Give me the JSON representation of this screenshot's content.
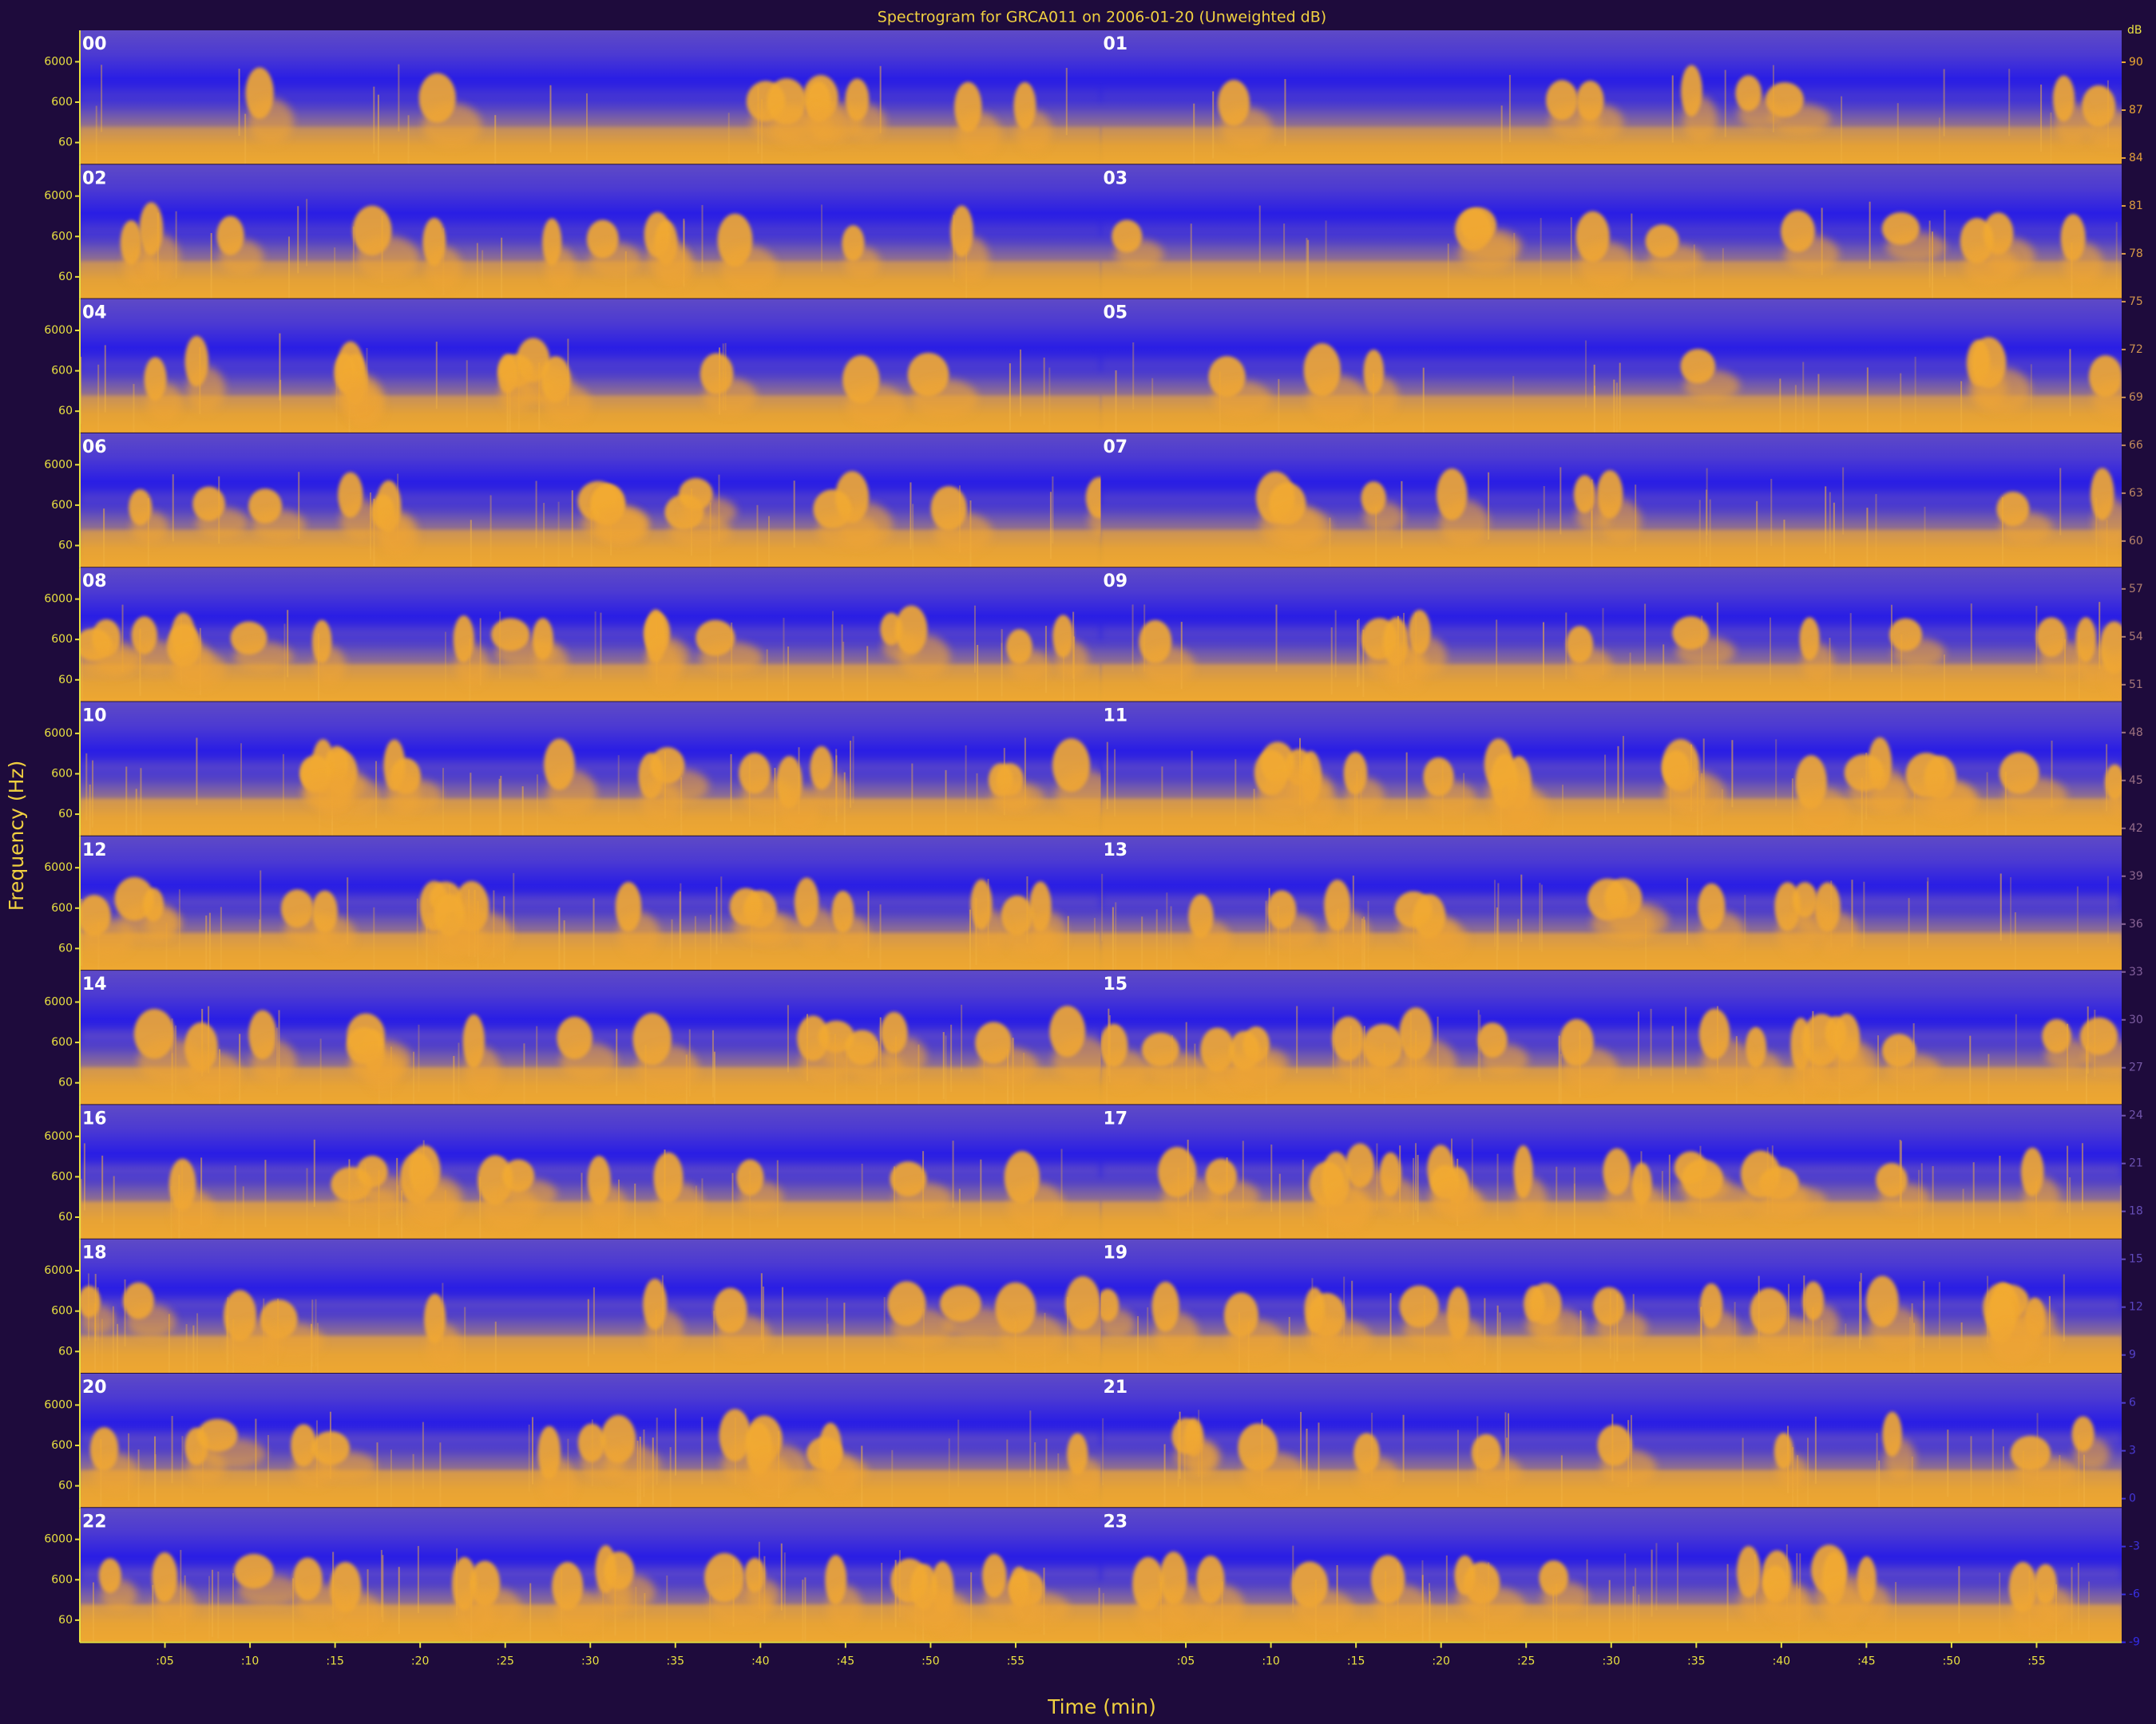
{
  "chart_data": {
    "type": "spectrogram",
    "title": "Spectrogram for GRCA011 on 2006-01-20 (Unweighted dB)",
    "x_label": "Time (min)",
    "y_label": "Frequency (Hz)",
    "panels": [
      "00",
      "01",
      "02",
      "03",
      "04",
      "05",
      "06",
      "07",
      "08",
      "09",
      "10",
      "11",
      "12",
      "13",
      "14",
      "15",
      "16",
      "17",
      "18",
      "19",
      "20",
      "21",
      "22",
      "23"
    ],
    "xlim": [
      0,
      60
    ],
    "xticks": [
      {
        "value": 5,
        "label": ":05"
      },
      {
        "value": 10,
        "label": ":10"
      },
      {
        "value": 15,
        "label": ":15"
      },
      {
        "value": 20,
        "label": ":20"
      },
      {
        "value": 25,
        "label": ":25"
      },
      {
        "value": 30,
        "label": ":30"
      },
      {
        "value": 35,
        "label": ":35"
      },
      {
        "value": 40,
        "label": ":40"
      },
      {
        "value": 45,
        "label": ":45"
      },
      {
        "value": 50,
        "label": ":50"
      },
      {
        "value": 55,
        "label": ":55"
      }
    ],
    "yscale": "log",
    "ylim": [
      17,
      36000
    ],
    "yticks": [
      6000,
      600,
      60
    ],
    "colorbar_label": "dB",
    "clim": [
      -9,
      92
    ],
    "cticks": [
      90,
      87,
      84,
      81,
      78,
      75,
      72,
      69,
      66,
      63,
      60,
      57,
      54,
      51,
      48,
      45,
      42,
      39,
      36,
      33,
      30,
      27,
      24,
      21,
      18,
      15,
      12,
      9,
      6,
      3,
      0,
      -3,
      -6,
      -9
    ]
  }
}
